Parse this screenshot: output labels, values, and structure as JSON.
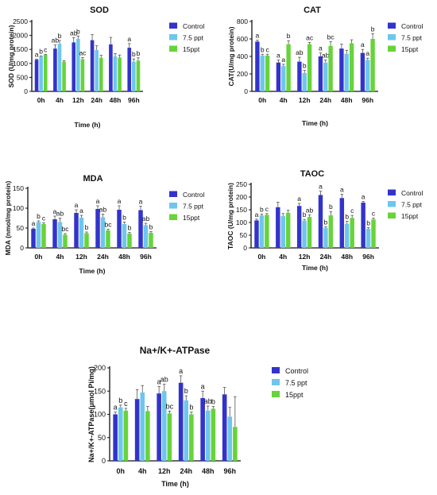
{
  "colors": {
    "Control": "#3333cc",
    "7.5 ppt": "#6fc6ec",
    "15ppt": "#66d43a",
    "axis": "#111111"
  },
  "chart_data": [
    {
      "type": "bar",
      "title": "SOD",
      "xlabel": "Time (h)",
      "ylabel": "SOD (U/mg protein)",
      "categories": [
        "0h",
        "4h",
        "12h",
        "24h",
        "48h",
        "96h"
      ],
      "ylim": [
        0,
        2500
      ],
      "yticks": [
        0,
        500,
        1000,
        1500,
        2000,
        2500
      ],
      "series": [
        {
          "name": "Control",
          "values": [
            1130,
            1530,
            1750,
            1830,
            1680,
            1560
          ],
          "errors": [
            20,
            130,
            170,
            200,
            250,
            150
          ],
          "letters": [
            "a",
            "ab",
            "ab",
            "",
            "",
            "a"
          ]
        },
        {
          "name": "7.5 ppt",
          "values": [
            1250,
            1700,
            1880,
            1480,
            1250,
            1060
          ],
          "errors": [
            20,
            120,
            100,
            150,
            100,
            100
          ],
          "letters": [
            "b",
            "b",
            "b",
            "",
            "",
            "b"
          ]
        },
        {
          "name": "15ppt",
          "values": [
            1310,
            1060,
            1150,
            1200,
            1210,
            1100
          ],
          "errors": [
            15,
            40,
            60,
            90,
            90,
            100
          ],
          "letters": [
            "c",
            "",
            "ac",
            "",
            "",
            "b"
          ]
        }
      ],
      "legend": [
        "Control",
        "7.5 ppt",
        "15ppt"
      ],
      "legend_position": "right"
    },
    {
      "type": "bar",
      "title": "CAT",
      "xlabel": "Time (h)",
      "ylabel": "CAT(U/mg protein)",
      "categories": [
        "0h",
        "4h",
        "12h",
        "24h",
        "48h",
        "96h"
      ],
      "ylim": [
        0,
        800
      ],
      "yticks": [
        0,
        200,
        400,
        600,
        800
      ],
      "series": [
        {
          "name": "Control",
          "values": [
            570,
            330,
            340,
            400,
            490,
            440
          ],
          "errors": [
            15,
            30,
            50,
            40,
            50,
            40
          ],
          "letters": [
            "a",
            "a",
            "ab",
            "a",
            "",
            "a"
          ]
        },
        {
          "name": "7.5 ppt",
          "values": [
            410,
            290,
            210,
            330,
            430,
            360
          ],
          "errors": [
            15,
            20,
            30,
            30,
            40,
            20
          ],
          "letters": [
            "b",
            "a",
            "b",
            "ab",
            "",
            "a"
          ]
        },
        {
          "name": "15ppt",
          "values": [
            410,
            540,
            540,
            520,
            550,
            600
          ],
          "errors": [
            15,
            40,
            20,
            50,
            40,
            60
          ],
          "letters": [
            "c",
            "b",
            "ac",
            "bc",
            "",
            "b"
          ]
        }
      ],
      "legend": [
        "Control",
        "7.5 ppt",
        "15ppt"
      ],
      "legend_position": "right"
    },
    {
      "type": "bar",
      "title": "MDA",
      "xlabel": "Time (h)",
      "ylabel": "MDA (nmol/mg protein)",
      "categories": [
        "0h",
        "4h",
        "12h",
        "24h",
        "48h",
        "96h"
      ],
      "ylim": [
        0,
        150
      ],
      "yticks": [
        0,
        50,
        100,
        150
      ],
      "series": [
        {
          "name": "Control",
          "values": [
            48,
            72,
            88,
            98,
            96,
            95
          ],
          "errors": [
            2,
            8,
            8,
            8,
            10,
            10
          ],
          "letters": [
            "a",
            "a",
            "a",
            "a",
            "a",
            "a"
          ]
        },
        {
          "name": "7.5 ppt",
          "values": [
            65,
            65,
            76,
            77,
            60,
            57
          ],
          "errors": [
            3,
            10,
            6,
            8,
            5,
            5
          ],
          "letters": [
            "b",
            "ab",
            "a",
            "ab",
            "b",
            "ab"
          ]
        },
        {
          "name": "15ppt",
          "values": [
            60,
            33,
            37,
            44,
            36,
            38
          ],
          "errors": [
            3,
            3,
            3,
            3,
            3,
            3
          ],
          "letters": [
            "c",
            "bc",
            "b",
            "bc",
            "b",
            "b"
          ]
        }
      ],
      "legend": [
        "Control",
        "7.5 ppt",
        "15ppt"
      ],
      "legend_position": "right"
    },
    {
      "type": "bar",
      "title": "TAOC",
      "xlabel": "Time (h)",
      "ylabel": "TAOC (U/mg protein)",
      "categories": [
        "0h",
        "4h",
        "12h",
        "24h",
        "48h",
        "96h"
      ],
      "ylim": [
        0,
        250
      ],
      "yticks": [
        0,
        50,
        100,
        150,
        200,
        250
      ],
      "series": [
        {
          "name": "Control",
          "values": [
            108,
            160,
            165,
            208,
            196,
            178
          ],
          "errors": [
            5,
            20,
            10,
            15,
            15,
            5
          ],
          "letters": [
            "a",
            "",
            "a",
            "a",
            "a",
            "a"
          ]
        },
        {
          "name": "7.5 ppt",
          "values": [
            128,
            125,
            107,
            78,
            95,
            75
          ],
          "errors": [
            5,
            10,
            5,
            5,
            10,
            5
          ],
          "letters": [
            "b",
            "",
            "b",
            "b",
            "b",
            "b"
          ]
        },
        {
          "name": "15ppt",
          "values": [
            130,
            138,
            122,
            128,
            118,
            112
          ],
          "errors": [
            5,
            10,
            8,
            15,
            10,
            5
          ],
          "letters": [
            "c",
            "",
            "ab",
            "b",
            "c",
            "c"
          ]
        }
      ],
      "legend": [
        "Control",
        "7.5 ppt",
        "15ppt"
      ],
      "legend_position": "right"
    },
    {
      "type": "bar",
      "title": "Na+/K+-ATPase",
      "xlabel": "Time (h)",
      "ylabel": "Na+/K+-ATPase(μmol Pi/mg)",
      "categories": [
        "0h",
        "4h",
        "12h",
        "24h",
        "48h",
        "96h"
      ],
      "ylim": [
        0,
        200
      ],
      "yticks": [
        0,
        50,
        100,
        150,
        200
      ],
      "series": [
        {
          "name": "Control",
          "values": [
            100,
            133,
            145,
            168,
            135,
            143
          ],
          "errors": [
            5,
            20,
            15,
            15,
            15,
            15
          ],
          "letters": [
            "a",
            "",
            "a",
            "a",
            "a",
            ""
          ]
        },
        {
          "name": "7.5 ppt",
          "values": [
            115,
            147,
            150,
            130,
            108,
            95
          ],
          "errors": [
            5,
            15,
            15,
            10,
            10,
            20
          ],
          "letters": [
            "b",
            "",
            "ab",
            "b",
            "ab",
            ""
          ]
        },
        {
          "name": "15ppt",
          "values": [
            108,
            107,
            102,
            100,
            112,
            73
          ],
          "errors": [
            5,
            10,
            5,
            5,
            5,
            65
          ],
          "letters": [
            "c",
            "",
            "bc",
            "b",
            "b",
            ""
          ]
        }
      ],
      "legend": [
        "Control",
        "7.5 ppt",
        "15ppt"
      ],
      "legend_position": "right"
    }
  ]
}
